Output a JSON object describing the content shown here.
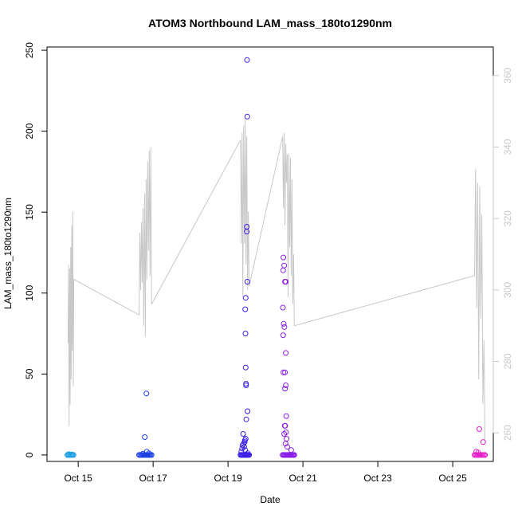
{
  "chart_data": {
    "type": "scatter",
    "title": "ATOM3 Northbound LAM_mass_180to1290nm",
    "xlabel": "Date",
    "ylabel": "LAM_mass_180to1290nm",
    "y2label": "",
    "xlim": [
      "2016-10-14T04:00",
      "2016-10-26T02:00"
    ],
    "ylim": [
      -4,
      252
    ],
    "y2lim": [
      252,
      368
    ],
    "x_ticks": [
      {
        "date": "2016-10-15",
        "label": "Oct 15"
      },
      {
        "date": "2016-10-17",
        "label": "Oct 17"
      },
      {
        "date": "2016-10-19",
        "label": "Oct 19"
      },
      {
        "date": "2016-10-21",
        "label": "Oct 21"
      },
      {
        "date": "2016-10-23",
        "label": "Oct 23"
      },
      {
        "date": "2016-10-25",
        "label": "Oct 25"
      }
    ],
    "y_ticks": [
      0,
      50,
      100,
      150,
      200,
      250
    ],
    "y2_ticks": [
      260,
      280,
      300,
      320,
      340,
      360
    ],
    "grid": false,
    "colors": {
      "line": "#c8c8c8",
      "axis": "#000000",
      "right_axis": "#c8c8c8"
    },
    "line_series": [
      [
        "2016-10-14T17:30",
        285
      ],
      [
        "2016-10-14T17:50",
        307
      ],
      [
        "2016-10-14T18:10",
        262
      ],
      [
        "2016-10-14T18:30",
        306
      ],
      [
        "2016-10-14T18:50",
        268
      ],
      [
        "2016-10-14T19:10",
        312
      ],
      [
        "2016-10-14T19:30",
        275
      ],
      [
        "2016-10-14T19:50",
        318
      ],
      [
        "2016-10-14T20:10",
        283
      ],
      [
        "2016-10-14T20:30",
        322
      ],
      [
        "2016-10-14T20:50",
        273
      ],
      [
        "2016-10-14T21:10",
        303
      ],
      [
        "2016-10-16T15:00",
        293
      ],
      [
        "2016-10-16T15:30",
        316
      ],
      [
        "2016-10-16T16:00",
        300
      ],
      [
        "2016-10-16T16:30",
        319
      ],
      [
        "2016-10-16T17:00",
        302
      ],
      [
        "2016-10-16T17:30",
        323
      ],
      [
        "2016-10-16T18:00",
        290
      ],
      [
        "2016-10-16T18:30",
        327
      ],
      [
        "2016-10-16T19:00",
        287
      ],
      [
        "2016-10-16T19:30",
        331
      ],
      [
        "2016-10-16T20:00",
        303
      ],
      [
        "2016-10-16T20:30",
        336
      ],
      [
        "2016-10-16T21:00",
        311
      ],
      [
        "2016-10-16T21:30",
        339
      ],
      [
        "2016-10-16T22:00",
        304
      ],
      [
        "2016-10-16T22:30",
        340
      ],
      [
        "2016-10-16T23:00",
        296
      ],
      [
        "2016-10-19T08:00",
        342
      ],
      [
        "2016-10-19T08:30",
        313
      ],
      [
        "2016-10-19T09:00",
        344
      ],
      [
        "2016-10-19T09:30",
        298
      ],
      [
        "2016-10-19T10:00",
        346
      ],
      [
        "2016-10-19T10:30",
        313
      ],
      [
        "2016-10-19T11:00",
        348
      ],
      [
        "2016-10-19T11:30",
        307
      ],
      [
        "2016-10-19T12:00",
        343
      ],
      [
        "2016-10-19T12:30",
        300
      ],
      [
        "2016-10-19T13:00",
        322
      ],
      [
        "2016-10-19T13:30",
        301
      ],
      [
        "2016-10-20T11:00",
        343
      ],
      [
        "2016-10-20T11:30",
        323
      ],
      [
        "2016-10-20T12:00",
        344
      ],
      [
        "2016-10-20T12:30",
        318
      ],
      [
        "2016-10-20T13:00",
        341
      ],
      [
        "2016-10-20T13:30",
        330
      ],
      [
        "2016-10-20T14:00",
        338
      ],
      [
        "2016-10-20T14:30",
        298
      ],
      [
        "2016-10-20T15:00",
        338
      ],
      [
        "2016-10-20T15:30",
        312
      ],
      [
        "2016-10-20T16:00",
        337
      ],
      [
        "2016-10-20T16:30",
        304
      ],
      [
        "2016-10-20T17:00",
        331
      ],
      [
        "2016-10-20T17:30",
        296
      ],
      [
        "2016-10-20T18:00",
        310
      ],
      [
        "2016-10-20T18:30",
        290
      ],
      [
        "2016-10-25T14:00",
        304
      ],
      [
        "2016-10-25T14:40",
        334
      ],
      [
        "2016-10-25T15:20",
        295
      ],
      [
        "2016-10-25T16:00",
        330
      ],
      [
        "2016-10-25T16:40",
        275
      ],
      [
        "2016-10-25T17:20",
        329
      ],
      [
        "2016-10-25T18:00",
        292
      ],
      [
        "2016-10-25T18:40",
        321
      ],
      [
        "2016-10-25T19:20",
        268
      ],
      [
        "2016-10-25T20:00",
        286
      ],
      [
        "2016-10-25T20:40",
        258
      ]
    ],
    "point_groups": [
      {
        "color": "#1e9ee6",
        "points": [
          [
            "2016-10-14T17:00",
            0
          ],
          [
            "2016-10-14T17:40",
            0
          ],
          [
            "2016-10-14T18:20",
            0
          ],
          [
            "2016-10-14T19:00",
            0
          ],
          [
            "2016-10-14T19:40",
            0
          ],
          [
            "2016-10-14T20:20",
            0
          ],
          [
            "2016-10-14T21:00",
            0
          ],
          [
            "2016-10-14T18:00",
            0.5
          ],
          [
            "2016-10-14T20:00",
            0.3
          ]
        ]
      },
      {
        "color": "#1a3fe6",
        "points": [
          [
            "2016-10-16T15:00",
            0
          ],
          [
            "2016-10-16T15:40",
            0
          ],
          [
            "2016-10-16T16:20",
            0
          ],
          [
            "2016-10-16T17:00",
            0
          ],
          [
            "2016-10-16T17:40",
            0
          ],
          [
            "2016-10-16T18:20",
            0
          ],
          [
            "2016-10-16T19:00",
            0
          ],
          [
            "2016-10-16T19:40",
            0
          ],
          [
            "2016-10-16T20:20",
            0
          ],
          [
            "2016-10-16T21:00",
            0
          ],
          [
            "2016-10-16T21:40",
            0
          ],
          [
            "2016-10-16T22:20",
            0
          ],
          [
            "2016-10-16T23:00",
            0
          ],
          [
            "2016-10-16T18:40",
            11
          ],
          [
            "2016-10-16T19:40",
            38
          ],
          [
            "2016-10-16T20:00",
            2
          ],
          [
            "2016-10-16T17:30",
            0.8
          ],
          [
            "2016-10-16T21:20",
            1
          ]
        ]
      },
      {
        "color": "#3a1ee6",
        "points": [
          [
            "2016-10-19T08:00",
            0
          ],
          [
            "2016-10-19T08:30",
            0
          ],
          [
            "2016-10-19T09:00",
            0
          ],
          [
            "2016-10-19T09:30",
            0
          ],
          [
            "2016-10-19T10:00",
            0
          ],
          [
            "2016-10-19T10:30",
            0
          ],
          [
            "2016-10-19T11:00",
            0
          ],
          [
            "2016-10-19T11:30",
            0
          ],
          [
            "2016-10-19T12:00",
            0
          ],
          [
            "2016-10-19T12:30",
            0
          ],
          [
            "2016-10-19T13:00",
            0
          ],
          [
            "2016-10-19T13:30",
            0
          ],
          [
            "2016-10-19T08:30",
            2
          ],
          [
            "2016-10-19T09:00",
            4
          ],
          [
            "2016-10-19T09:20",
            6
          ],
          [
            "2016-10-19T09:40",
            13
          ],
          [
            "2016-10-19T10:00",
            7
          ],
          [
            "2016-10-19T10:20",
            5
          ],
          [
            "2016-10-19T10:40",
            8
          ],
          [
            "2016-10-19T10:50",
            9
          ],
          [
            "2016-10-19T11:00",
            3
          ],
          [
            "2016-10-19T11:20",
            10
          ],
          [
            "2016-10-19T11:40",
            22
          ],
          [
            "2016-10-19T11:30",
            44
          ],
          [
            "2016-10-19T11:35",
            43
          ],
          [
            "2016-10-19T11:20",
            54
          ],
          [
            "2016-10-19T11:10",
            75
          ],
          [
            "2016-10-19T11:00",
            90
          ],
          [
            "2016-10-19T11:20",
            97
          ],
          [
            "2016-10-19T12:20",
            107
          ],
          [
            "2016-10-19T12:00",
            138
          ],
          [
            "2016-10-19T12:00",
            141
          ],
          [
            "2016-10-19T12:20",
            209
          ],
          [
            "2016-10-19T12:10",
            244
          ],
          [
            "2016-10-19T12:30",
            27
          ],
          [
            "2016-10-19T12:40",
            1
          ]
        ]
      },
      {
        "color": "#8a1ee6",
        "points": [
          [
            "2016-10-20T11:00",
            0
          ],
          [
            "2016-10-20T11:30",
            0
          ],
          [
            "2016-10-20T12:00",
            0
          ],
          [
            "2016-10-20T12:30",
            0
          ],
          [
            "2016-10-20T13:00",
            0
          ],
          [
            "2016-10-20T13:30",
            0
          ],
          [
            "2016-10-20T14:00",
            0
          ],
          [
            "2016-10-20T14:30",
            0
          ],
          [
            "2016-10-20T15:00",
            0
          ],
          [
            "2016-10-20T15:30",
            0
          ],
          [
            "2016-10-20T16:00",
            0
          ],
          [
            "2016-10-20T16:30",
            0
          ],
          [
            "2016-10-20T17:00",
            0
          ],
          [
            "2016-10-20T17:30",
            0
          ],
          [
            "2016-10-20T18:00",
            0
          ],
          [
            "2016-10-20T18:30",
            0
          ],
          [
            "2016-10-20T11:30",
            122
          ],
          [
            "2016-10-20T11:20",
            114
          ],
          [
            "2016-10-20T12:00",
            117
          ],
          [
            "2016-10-20T12:30",
            107
          ],
          [
            "2016-10-20T13:00",
            107
          ],
          [
            "2016-10-20T11:10",
            91
          ],
          [
            "2016-10-20T11:40",
            81
          ],
          [
            "2016-10-20T12:10",
            79
          ],
          [
            "2016-10-20T11:20",
            74
          ],
          [
            "2016-10-20T13:00",
            63
          ],
          [
            "2016-10-20T11:30",
            51
          ],
          [
            "2016-10-20T12:30",
            51
          ],
          [
            "2016-10-20T13:00",
            43
          ],
          [
            "2016-10-20T12:30",
            41
          ],
          [
            "2016-10-20T13:20",
            24
          ],
          [
            "2016-10-20T12:40",
            18
          ],
          [
            "2016-10-20T12:20",
            18
          ],
          [
            "2016-10-20T12:00",
            13
          ],
          [
            "2016-10-20T13:10",
            14
          ],
          [
            "2016-10-20T13:30",
            10
          ],
          [
            "2016-10-20T12:50",
            7
          ],
          [
            "2016-10-20T14:00",
            5
          ],
          [
            "2016-10-20T16:30",
            3
          ]
        ]
      },
      {
        "color": "#e61ec8",
        "points": [
          [
            "2016-10-25T14:00",
            0
          ],
          [
            "2016-10-25T14:40",
            0
          ],
          [
            "2016-10-25T15:20",
            0
          ],
          [
            "2016-10-25T16:00",
            0
          ],
          [
            "2016-10-25T16:40",
            0
          ],
          [
            "2016-10-25T17:20",
            0
          ],
          [
            "2016-10-25T18:00",
            0
          ],
          [
            "2016-10-25T18:40",
            0
          ],
          [
            "2016-10-25T19:20",
            0
          ],
          [
            "2016-10-25T20:00",
            0
          ],
          [
            "2016-10-25T20:40",
            0
          ],
          [
            "2016-10-25T15:00",
            2
          ],
          [
            "2016-10-25T17:00",
            16
          ],
          [
            "2016-10-25T19:30",
            8
          ],
          [
            "2016-10-25T16:20",
            1.5
          ]
        ]
      }
    ]
  }
}
